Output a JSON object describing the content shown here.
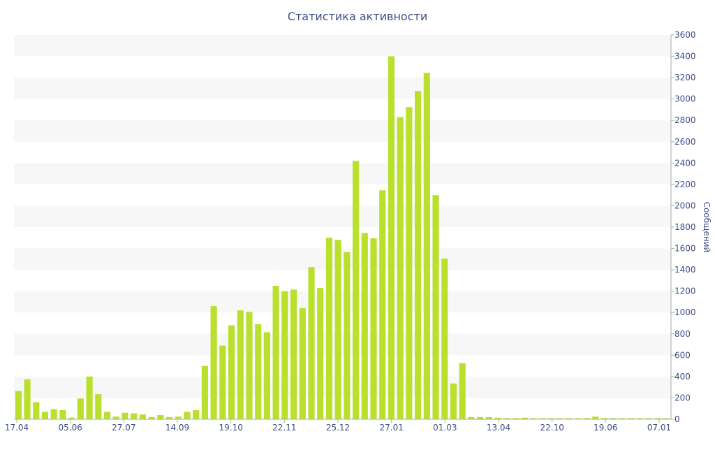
{
  "chart_data": {
    "type": "bar",
    "title": "Статистика активности",
    "xlabel": "",
    "ylabel": "Сообщений",
    "ylim": [
      0,
      3600
    ],
    "y_ticks": [
      0,
      200,
      400,
      600,
      800,
      1000,
      1200,
      1400,
      1600,
      1800,
      2000,
      2200,
      2400,
      2600,
      2800,
      3000,
      3200,
      3400,
      3600
    ],
    "y_axis_position": "right",
    "x_tick_labels": [
      "17.04",
      "05.06",
      "27.07",
      "14.09",
      "19.10",
      "22.11",
      "25.12",
      "27.01",
      "01.03",
      "13.04",
      "22.10",
      "19.06",
      "07.01"
    ],
    "bar_color": "#b9e02d",
    "band_color": "#f7f7f7",
    "text_color": "#3e4e85",
    "values": [
      265,
      375,
      160,
      70,
      95,
      85,
      15,
      195,
      400,
      235,
      70,
      25,
      60,
      55,
      45,
      20,
      40,
      20,
      25,
      70,
      85,
      500,
      1060,
      690,
      880,
      1020,
      1005,
      890,
      815,
      1250,
      1200,
      1215,
      1040,
      1425,
      1230,
      1700,
      1680,
      1565,
      2420,
      1745,
      1695,
      2145,
      3400,
      2830,
      2925,
      3075,
      3245,
      2100,
      1505,
      335,
      525,
      20,
      20,
      20,
      15,
      10,
      10,
      15,
      10,
      10,
      10,
      10,
      10,
      10,
      10,
      25,
      10,
      10,
      10,
      10,
      10,
      10,
      10,
      10
    ]
  }
}
